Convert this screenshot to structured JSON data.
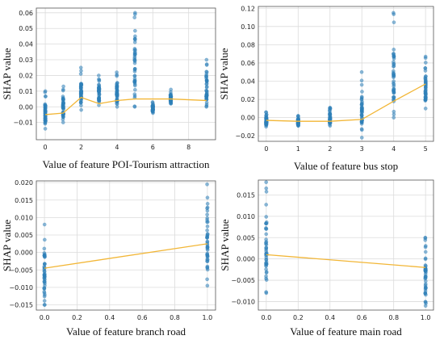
{
  "chart_data": [
    {
      "type": "scatter",
      "xlabel": "Value of feature POI-Tourism attraction",
      "ylabel": "SHAP value",
      "xlim": [
        -0.5,
        9.5
      ],
      "ylim": [
        -0.021,
        0.063
      ],
      "xticks": [
        "0",
        "2",
        "4",
        "6",
        "8"
      ],
      "xtick_values": [
        0,
        2,
        4,
        6,
        8
      ],
      "yticks": [
        "−0.01",
        "0.00",
        "0.01",
        "0.02",
        "0.03",
        "0.04",
        "0.05",
        "0.06"
      ],
      "ytick_values": [
        -0.01,
        0,
        0.01,
        0.02,
        0.03,
        0.04,
        0.05,
        0.06
      ],
      "point_columns": [
        {
          "x": 0,
          "ymin": -0.014,
          "ymax": 0.01
        },
        {
          "x": 1,
          "ymin": -0.01,
          "ymax": 0.013
        },
        {
          "x": 2,
          "ymin": -0.002,
          "ymax": 0.025
        },
        {
          "x": 3,
          "ymin": 0.001,
          "ymax": 0.02
        },
        {
          "x": 4,
          "ymin": 0.0,
          "ymax": 0.022
        },
        {
          "x": 5,
          "ymin": 0.0,
          "ymax": 0.06
        },
        {
          "x": 6,
          "ymin": -0.004,
          "ymax": 0.003
        },
        {
          "x": 7,
          "ymin": 0.002,
          "ymax": 0.011
        },
        {
          "x": 9,
          "ymin": 0.0,
          "ymax": 0.03
        }
      ],
      "trend": {
        "x": [
          0,
          1,
          2,
          3,
          4,
          5,
          6,
          7,
          9
        ],
        "y": [
          -0.005,
          -0.004,
          0.006,
          0.002,
          0.004,
          0.005,
          0.005,
          0.005,
          0.004
        ]
      }
    },
    {
      "type": "scatter",
      "xlabel": "Value of feature bus stop",
      "ylabel": "SHAP value",
      "xlim": [
        -0.25,
        5.25
      ],
      "ylim": [
        -0.026,
        0.122
      ],
      "xticks": [
        "0",
        "1",
        "2",
        "3",
        "4",
        "5"
      ],
      "xtick_values": [
        0,
        1,
        2,
        3,
        4,
        5
      ],
      "yticks": [
        "−0.02",
        "0.00",
        "0.02",
        "0.04",
        "0.06",
        "0.08",
        "0.10",
        "0.12"
      ],
      "ytick_values": [
        -0.02,
        0,
        0.02,
        0.04,
        0.06,
        0.08,
        0.1,
        0.12
      ],
      "point_columns": [
        {
          "x": 0,
          "ymin": -0.01,
          "ymax": 0.006
        },
        {
          "x": 1,
          "ymin": -0.009,
          "ymax": 0.002
        },
        {
          "x": 2,
          "ymin": -0.009,
          "ymax": 0.011
        },
        {
          "x": 3,
          "ymin": -0.022,
          "ymax": 0.05
        },
        {
          "x": 4,
          "ymin": 0.0,
          "ymax": 0.115
        },
        {
          "x": 5,
          "ymin": 0.01,
          "ymax": 0.067
        }
      ],
      "trend": {
        "x": [
          0,
          1,
          2,
          3,
          4,
          5
        ],
        "y": [
          -0.003,
          -0.004,
          -0.004,
          -0.002,
          0.018,
          0.037
        ]
      }
    },
    {
      "type": "scatter",
      "xlabel": "Value of feature branch road",
      "ylabel": "SHAP value",
      "xlim": [
        -0.05,
        1.05
      ],
      "ylim": [
        -0.0165,
        0.0205
      ],
      "xticks": [
        "0.0",
        "0.2",
        "0.4",
        "0.6",
        "0.8",
        "1.0"
      ],
      "xtick_values": [
        0,
        0.2,
        0.4,
        0.6,
        0.8,
        1.0
      ],
      "yticks": [
        "−0.015",
        "−0.010",
        "−0.005",
        "0.000",
        "0.005",
        "0.010",
        "0.015",
        "0.020"
      ],
      "ytick_values": [
        -0.015,
        -0.01,
        -0.005,
        0,
        0.005,
        0.01,
        0.015,
        0.02
      ],
      "point_columns": [
        {
          "x": 0,
          "ymin": -0.015,
          "ymax": 0.008
        },
        {
          "x": 1,
          "ymin": -0.0095,
          "ymax": 0.0195
        }
      ],
      "trend": {
        "x": [
          0,
          1
        ],
        "y": [
          -0.0045,
          0.0025
        ]
      }
    },
    {
      "type": "scatter",
      "xlabel": "Value of feature main road",
      "ylabel": "SHAP value",
      "xlim": [
        -0.05,
        1.05
      ],
      "ylim": [
        -0.012,
        0.0185
      ],
      "xticks": [
        "0.0",
        "0.2",
        "0.4",
        "0.6",
        "0.8",
        "1.0"
      ],
      "xtick_values": [
        0,
        0.2,
        0.4,
        0.6,
        0.8,
        1.0
      ],
      "yticks": [
        "−0.010",
        "−0.005",
        "0.000",
        "0.005",
        "0.010",
        "0.015"
      ],
      "ytick_values": [
        -0.01,
        -0.005,
        0,
        0.005,
        0.01,
        0.015
      ],
      "point_columns": [
        {
          "x": 0,
          "ymin": -0.008,
          "ymax": 0.018
        },
        {
          "x": 1,
          "ymin": -0.011,
          "ymax": 0.005
        }
      ],
      "trend": {
        "x": [
          0,
          1
        ],
        "y": [
          0.001,
          -0.002
        ]
      }
    }
  ],
  "colors": {
    "points": "#2e7fb8",
    "trend": "#f2b636",
    "grid": "#dcdcdc"
  }
}
